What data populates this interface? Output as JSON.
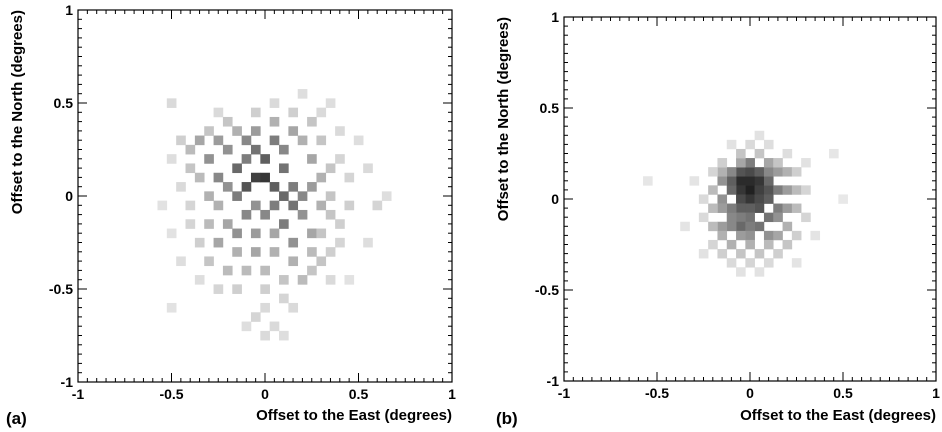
{
  "chart_data": [
    {
      "type": "heatmap",
      "panel_label": "(a)",
      "xlabel": "Offset to the East (degrees)",
      "ylabel": "Offset to the North (degrees)",
      "xlim": [
        -1,
        1
      ],
      "ylim": [
        -1,
        1
      ],
      "xticks": [
        -1,
        -0.5,
        0,
        0.5,
        1
      ],
      "yticks": [
        -1,
        -0.5,
        0,
        0.5,
        1
      ],
      "xtick_labels": [
        "-1",
        "-0.5",
        "0",
        "0.5",
        "1"
      ],
      "ytick_labels": [
        "-1",
        "-0.5",
        "0",
        "0.5",
        "1"
      ],
      "grid": false,
      "colormap": "grayscale",
      "bin_width": 0.05,
      "cells": [
        [
          -0.05,
          0.1,
          0.85
        ],
        [
          0.0,
          0.1,
          0.9
        ],
        [
          -0.1,
          0.05,
          0.75
        ],
        [
          0.05,
          0.05,
          0.7
        ],
        [
          -0.15,
          0.15,
          0.65
        ],
        [
          0.1,
          0.15,
          0.6
        ],
        [
          0.0,
          0.2,
          0.7
        ],
        [
          -0.05,
          0.25,
          0.6
        ],
        [
          0.05,
          0.3,
          0.55
        ],
        [
          -0.1,
          0.3,
          0.5
        ],
        [
          0.1,
          0.25,
          0.5
        ],
        [
          0.15,
          0.05,
          0.55
        ],
        [
          0.2,
          0.0,
          0.5
        ],
        [
          0.15,
          -0.05,
          0.6
        ],
        [
          0.05,
          -0.05,
          0.55
        ],
        [
          -0.05,
          -0.05,
          0.45
        ],
        [
          -0.1,
          -0.1,
          0.5
        ],
        [
          0.0,
          -0.1,
          0.5
        ],
        [
          0.1,
          -0.15,
          0.55
        ],
        [
          -0.2,
          0.05,
          0.45
        ],
        [
          -0.25,
          0.1,
          0.5
        ],
        [
          -0.3,
          0.2,
          0.45
        ],
        [
          -0.35,
          0.3,
          0.35
        ],
        [
          -0.25,
          0.3,
          0.4
        ],
        [
          -0.2,
          0.25,
          0.45
        ],
        [
          -0.15,
          0.35,
          0.3
        ],
        [
          -0.05,
          0.35,
          0.4
        ],
        [
          0.05,
          0.4,
          0.3
        ],
        [
          0.15,
          0.35,
          0.35
        ],
        [
          0.2,
          0.3,
          0.3
        ],
        [
          0.25,
          0.2,
          0.35
        ],
        [
          0.3,
          0.1,
          0.3
        ],
        [
          0.25,
          0.05,
          0.4
        ],
        [
          0.3,
          -0.05,
          0.3
        ],
        [
          0.2,
          -0.1,
          0.45
        ],
        [
          0.25,
          -0.2,
          0.35
        ],
        [
          0.15,
          -0.25,
          0.45
        ],
        [
          0.05,
          -0.2,
          0.35
        ],
        [
          -0.05,
          -0.2,
          0.4
        ],
        [
          -0.15,
          -0.2,
          0.45
        ],
        [
          -0.2,
          -0.15,
          0.35
        ],
        [
          -0.25,
          -0.05,
          0.3
        ],
        [
          -0.3,
          0.0,
          0.3
        ],
        [
          -0.35,
          0.1,
          0.25
        ],
        [
          -0.4,
          0.15,
          0.2
        ],
        [
          -0.4,
          0.25,
          0.25
        ],
        [
          -0.45,
          0.3,
          0.15
        ],
        [
          -0.1,
          0.2,
          0.55
        ],
        [
          0.1,
          0.0,
          0.65
        ],
        [
          -0.15,
          0.0,
          0.55
        ],
        [
          -0.3,
          -0.15,
          0.25
        ],
        [
          -0.25,
          -0.25,
          0.35
        ],
        [
          -0.15,
          -0.3,
          0.3
        ],
        [
          -0.05,
          -0.3,
          0.35
        ],
        [
          0.05,
          -0.3,
          0.3
        ],
        [
          0.15,
          -0.35,
          0.3
        ],
        [
          0.25,
          -0.3,
          0.25
        ],
        [
          0.3,
          -0.2,
          0.2
        ],
        [
          0.35,
          -0.1,
          0.2
        ],
        [
          0.35,
          0.0,
          0.2
        ],
        [
          0.35,
          0.15,
          0.2
        ],
        [
          0.3,
          0.3,
          0.2
        ],
        [
          0.25,
          0.4,
          0.2
        ],
        [
          0.15,
          0.45,
          0.15
        ],
        [
          -0.05,
          0.45,
          0.15
        ],
        [
          -0.2,
          0.4,
          0.2
        ],
        [
          -0.3,
          0.35,
          0.2
        ],
        [
          0.3,
          0.45,
          0.1
        ],
        [
          0.35,
          0.5,
          0.08
        ],
        [
          0.4,
          0.35,
          0.1
        ],
        [
          0.4,
          0.2,
          0.12
        ],
        [
          0.45,
          0.1,
          0.12
        ],
        [
          0.45,
          -0.05,
          0.15
        ],
        [
          0.4,
          -0.15,
          0.15
        ],
        [
          0.4,
          -0.25,
          0.12
        ],
        [
          0.35,
          -0.3,
          0.15
        ],
        [
          0.3,
          -0.35,
          0.2
        ],
        [
          0.25,
          -0.4,
          0.2
        ],
        [
          0.2,
          -0.45,
          0.25
        ],
        [
          0.1,
          -0.45,
          0.2
        ],
        [
          0.0,
          -0.4,
          0.25
        ],
        [
          -0.1,
          -0.4,
          0.25
        ],
        [
          -0.2,
          -0.4,
          0.25
        ],
        [
          -0.3,
          -0.35,
          0.2
        ],
        [
          -0.35,
          -0.25,
          0.15
        ],
        [
          -0.4,
          -0.15,
          0.12
        ],
        [
          -0.4,
          -0.05,
          0.12
        ],
        [
          -0.45,
          0.05,
          0.1
        ],
        [
          -0.5,
          0.2,
          0.08
        ],
        [
          -0.5,
          0.5,
          0.1
        ],
        [
          -0.25,
          0.45,
          0.1
        ],
        [
          0.05,
          0.5,
          0.1
        ],
        [
          0.2,
          0.55,
          0.08
        ],
        [
          -0.15,
          -0.5,
          0.15
        ],
        [
          -0.25,
          -0.5,
          0.12
        ],
        [
          0.0,
          -0.5,
          0.15
        ],
        [
          0.1,
          -0.55,
          0.12
        ],
        [
          0.0,
          -0.6,
          0.1
        ],
        [
          -0.05,
          -0.65,
          0.12
        ],
        [
          0.05,
          -0.7,
          0.1
        ],
        [
          0.1,
          -0.75,
          0.08
        ],
        [
          0.0,
          -0.75,
          0.1
        ],
        [
          -0.1,
          -0.7,
          0.08
        ],
        [
          0.15,
          -0.6,
          0.1
        ],
        [
          0.35,
          -0.45,
          0.1
        ],
        [
          -0.35,
          -0.45,
          0.08
        ],
        [
          -0.45,
          -0.35,
          0.08
        ],
        [
          -0.5,
          -0.6,
          0.06
        ],
        [
          0.55,
          0.15,
          0.1
        ],
        [
          0.6,
          -0.05,
          0.12
        ],
        [
          0.65,
          0.0,
          0.08
        ],
        [
          0.55,
          -0.25,
          0.08
        ],
        [
          -0.55,
          -0.05,
          0.06
        ],
        [
          -0.5,
          -0.2,
          0.06
        ],
        [
          0.5,
          0.3,
          0.08
        ],
        [
          0.45,
          -0.45,
          0.06
        ]
      ]
    },
    {
      "type": "heatmap",
      "panel_label": "(b)",
      "xlabel": "Offset to the East (degrees)",
      "ylabel": "Offset to the North (degrees)",
      "xlim": [
        -1,
        1
      ],
      "ylim": [
        -1,
        1
      ],
      "xticks": [
        -1,
        -0.5,
        0,
        0.5,
        1
      ],
      "yticks": [
        -1,
        -0.5,
        0,
        0.5,
        1
      ],
      "xtick_labels": [
        "-1",
        "-0.5",
        "0",
        "0.5",
        "1"
      ],
      "ytick_labels": [
        "-1",
        "-0.5",
        "0",
        "0.5",
        "1"
      ],
      "grid": false,
      "colormap": "grayscale",
      "bin_width": 0.05,
      "cells": [
        [
          0.0,
          0.05,
          1.0
        ],
        [
          -0.05,
          0.1,
          0.95
        ],
        [
          0.05,
          0.1,
          0.9
        ],
        [
          0.0,
          0.1,
          0.95
        ],
        [
          -0.05,
          0.05,
          0.9
        ],
        [
          0.05,
          0.05,
          0.85
        ],
        [
          0.0,
          0.0,
          0.9
        ],
        [
          -0.05,
          0.0,
          0.8
        ],
        [
          0.05,
          0.0,
          0.8
        ],
        [
          0.1,
          0.05,
          0.75
        ],
        [
          0.1,
          0.0,
          0.7
        ],
        [
          0.05,
          -0.05,
          0.75
        ],
        [
          0.0,
          -0.05,
          0.7
        ],
        [
          -0.05,
          -0.05,
          0.7
        ],
        [
          -0.1,
          0.05,
          0.65
        ],
        [
          -0.1,
          0.1,
          0.7
        ],
        [
          -0.05,
          0.15,
          0.75
        ],
        [
          0.0,
          0.15,
          0.8
        ],
        [
          0.05,
          0.15,
          0.7
        ],
        [
          0.1,
          0.1,
          0.65
        ],
        [
          0.15,
          0.05,
          0.55
        ],
        [
          0.15,
          -0.05,
          0.55
        ],
        [
          0.1,
          -0.1,
          0.6
        ],
        [
          0.0,
          -0.1,
          0.6
        ],
        [
          -0.05,
          -0.1,
          0.55
        ],
        [
          -0.1,
          -0.1,
          0.5
        ],
        [
          -0.1,
          -0.05,
          0.55
        ],
        [
          -0.15,
          0.0,
          0.45
        ],
        [
          -0.15,
          0.1,
          0.45
        ],
        [
          -0.1,
          0.15,
          0.5
        ],
        [
          0.0,
          0.2,
          0.55
        ],
        [
          0.1,
          0.15,
          0.5
        ],
        [
          0.15,
          0.15,
          0.4
        ],
        [
          0.2,
          0.05,
          0.4
        ],
        [
          0.2,
          -0.05,
          0.4
        ],
        [
          0.15,
          -0.1,
          0.45
        ],
        [
          0.05,
          -0.15,
          0.6
        ],
        [
          -0.05,
          -0.15,
          0.65
        ],
        [
          -0.1,
          -0.15,
          0.5
        ],
        [
          0.0,
          -0.15,
          0.55
        ],
        [
          -0.15,
          -0.15,
          0.4
        ],
        [
          -0.15,
          -0.05,
          0.4
        ],
        [
          0.0,
          -0.2,
          0.45
        ],
        [
          0.1,
          -0.2,
          0.45
        ],
        [
          -0.05,
          -0.2,
          0.4
        ],
        [
          0.15,
          -0.2,
          0.35
        ],
        [
          0.2,
          -0.15,
          0.3
        ],
        [
          0.25,
          -0.05,
          0.25
        ],
        [
          0.25,
          0.05,
          0.25
        ],
        [
          0.2,
          0.15,
          0.3
        ],
        [
          0.1,
          0.2,
          0.35
        ],
        [
          -0.05,
          0.2,
          0.35
        ],
        [
          -0.15,
          0.15,
          0.3
        ],
        [
          -0.2,
          0.05,
          0.25
        ],
        [
          -0.2,
          -0.05,
          0.25
        ],
        [
          -0.2,
          -0.15,
          0.25
        ],
        [
          -0.15,
          -0.2,
          0.3
        ],
        [
          -0.1,
          -0.25,
          0.3
        ],
        [
          0.0,
          -0.25,
          0.3
        ],
        [
          0.1,
          -0.25,
          0.25
        ],
        [
          0.05,
          -0.3,
          0.2
        ],
        [
          -0.05,
          -0.3,
          0.2
        ],
        [
          0.15,
          -0.3,
          0.15
        ],
        [
          -0.15,
          -0.3,
          0.15
        ],
        [
          0.2,
          -0.25,
          0.2
        ],
        [
          0.25,
          -0.2,
          0.15
        ],
        [
          0.3,
          -0.1,
          0.12
        ],
        [
          0.3,
          0.05,
          0.12
        ],
        [
          0.25,
          0.15,
          0.15
        ],
        [
          0.15,
          0.2,
          0.2
        ],
        [
          0.05,
          0.25,
          0.2
        ],
        [
          -0.05,
          0.25,
          0.2
        ],
        [
          -0.15,
          0.2,
          0.15
        ],
        [
          -0.2,
          0.15,
          0.12
        ],
        [
          -0.25,
          0.0,
          0.1
        ],
        [
          -0.25,
          -0.1,
          0.1
        ],
        [
          -0.2,
          -0.25,
          0.12
        ],
        [
          -0.1,
          -0.35,
          0.1
        ],
        [
          0.0,
          -0.35,
          0.12
        ],
        [
          0.1,
          -0.35,
          0.1
        ],
        [
          0.05,
          -0.4,
          0.06
        ],
        [
          -0.05,
          -0.4,
          0.06
        ],
        [
          0.0,
          0.3,
          0.1
        ],
        [
          0.1,
          0.3,
          0.08
        ],
        [
          -0.1,
          0.3,
          0.06
        ],
        [
          0.2,
          0.25,
          0.08
        ],
        [
          0.3,
          0.2,
          0.06
        ],
        [
          -0.3,
          0.1,
          0.05
        ],
        [
          0.35,
          -0.2,
          0.05
        ],
        [
          -0.25,
          -0.3,
          0.06
        ],
        [
          0.25,
          -0.35,
          0.05
        ],
        [
          0.05,
          0.35,
          0.06
        ],
        [
          0.45,
          0.25,
          0.04
        ],
        [
          -0.55,
          0.1,
          0.04
        ],
        [
          0.5,
          0.0,
          0.03
        ],
        [
          -0.35,
          -0.15,
          0.05
        ]
      ]
    }
  ]
}
